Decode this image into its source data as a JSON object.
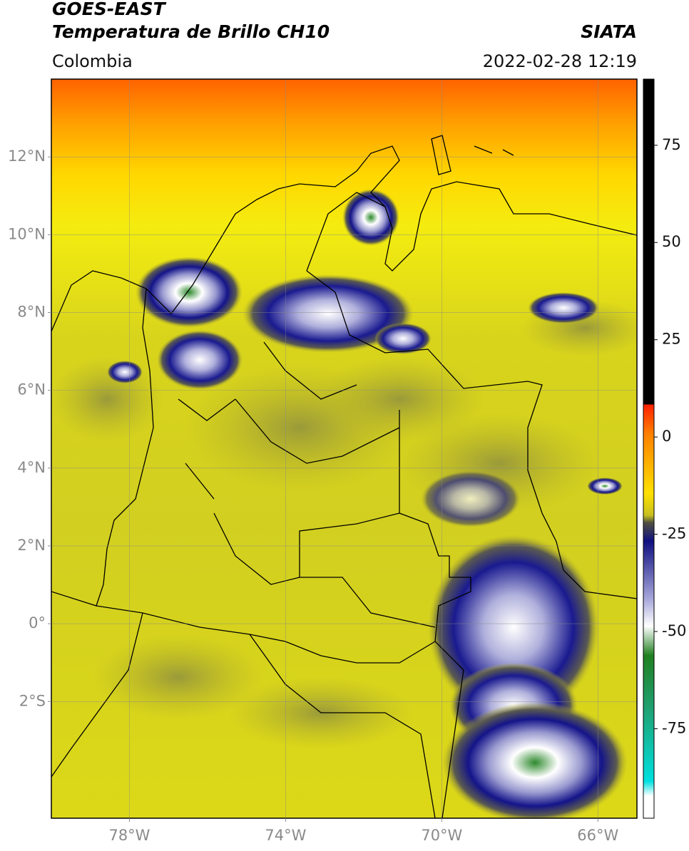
{
  "header": {
    "title": "GOES-EAST",
    "subtitle": "Temperatura de Brillo CH10",
    "source": "SIATA",
    "region": "Colombia",
    "datetime": "2022-02-28 12:19"
  },
  "map": {
    "lonlim": [
      -80,
      -65
    ],
    "latlim": [
      -5,
      14
    ],
    "lon_ticks": [
      {
        "value": -78,
        "label": "78°W"
      },
      {
        "value": -74,
        "label": "74°W"
      },
      {
        "value": -70,
        "label": "70°W"
      },
      {
        "value": -66,
        "label": "66°W"
      }
    ],
    "lat_ticks": [
      {
        "value": 12,
        "label": "12°N"
      },
      {
        "value": 10,
        "label": "10°N"
      },
      {
        "value": 8,
        "label": "8°N"
      },
      {
        "value": 6,
        "label": "6°N"
      },
      {
        "value": 4,
        "label": "4°N"
      },
      {
        "value": 2,
        "label": "2°N"
      },
      {
        "value": 0,
        "label": "0°"
      },
      {
        "value": -2,
        "label": "2°S"
      }
    ]
  },
  "colorbar": {
    "lim": [
      -98,
      92
    ],
    "ticks": [
      75,
      50,
      25,
      0,
      -25,
      -50,
      -75
    ]
  }
}
